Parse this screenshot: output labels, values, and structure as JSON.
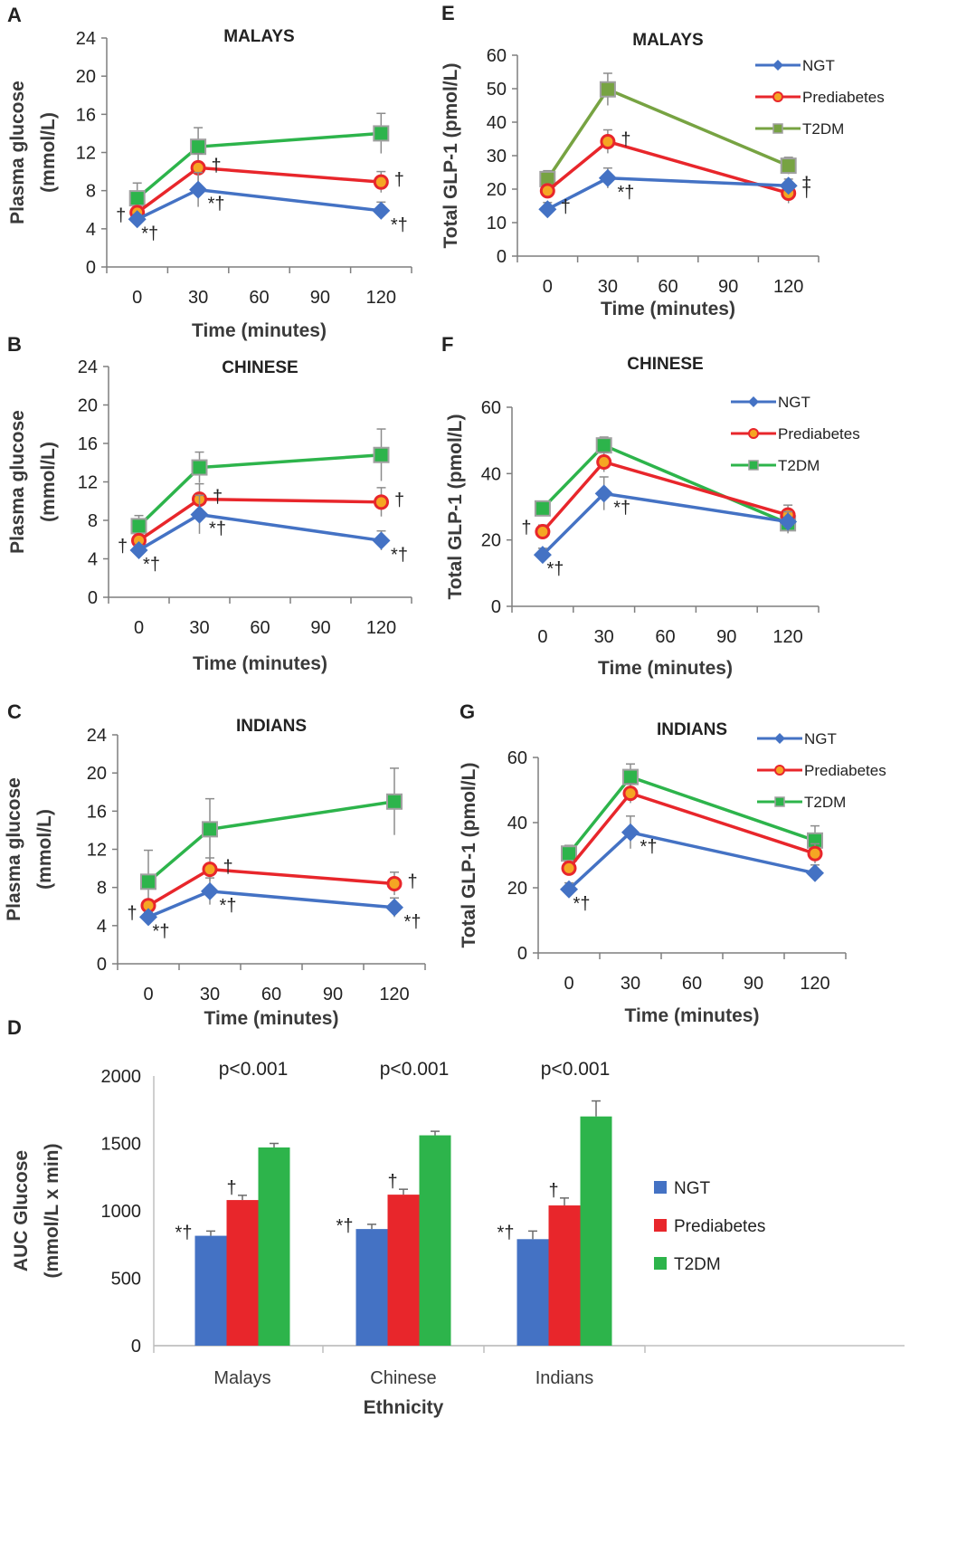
{
  "colors": {
    "NGT": "#4472c4",
    "Prediabetes": "#e8262b",
    "T2DM_malays_glp": "#77a342",
    "T2DM": "#2db44b",
    "axis": "#7f7f7f",
    "text": "#222222",
    "error": "#8c8c8c"
  },
  "chart_data": [
    {
      "id": "A",
      "type": "line",
      "title": "MALAYS",
      "xlabel": "Time (minutes)",
      "ylabel": [
        "Plasma glucose",
        "(mmol/L)"
      ],
      "x_ticks": [
        "0",
        "30",
        "60",
        "90",
        "120"
      ],
      "y_ticks": [
        "0",
        "4",
        "8",
        "12",
        "16",
        "20",
        "24"
      ],
      "xlim": [
        -15,
        135
      ],
      "ylim": [
        0,
        24
      ],
      "series": [
        {
          "name": "NGT",
          "x": [
            0,
            30,
            120
          ],
          "values": [
            5.0,
            8.1,
            5.9
          ],
          "err": [
            0.5,
            1.8,
            0.9
          ]
        },
        {
          "name": "Prediabetes",
          "x": [
            0,
            30,
            120
          ],
          "values": [
            5.7,
            10.4,
            8.9
          ],
          "err": [
            0.5,
            1.5,
            1.1
          ]
        },
        {
          "name": "T2DM",
          "x": [
            0,
            30,
            120
          ],
          "values": [
            7.2,
            12.6,
            14.0
          ],
          "err": [
            1.6,
            2.0,
            2.1
          ]
        }
      ],
      "annotations": [
        {
          "x": 0,
          "y": 5.0,
          "text": "†"
        },
        {
          "x": 0,
          "y": 5.0,
          "text": "*†"
        },
        {
          "x": 30,
          "y": 10.4,
          "text": "†"
        },
        {
          "x": 30,
          "y": 8.1,
          "text": "*†"
        },
        {
          "x": 120,
          "y": 8.9,
          "text": "†"
        },
        {
          "x": 120,
          "y": 5.9,
          "text": "*†"
        }
      ]
    },
    {
      "id": "B",
      "type": "line",
      "title": "CHINESE",
      "xlabel": "Time (minutes)",
      "ylabel": [
        "Plasma glucose",
        "(mmol/L)"
      ],
      "x_ticks": [
        "0",
        "30",
        "60",
        "90",
        "120"
      ],
      "y_ticks": [
        "0",
        "4",
        "8",
        "12",
        "16",
        "20",
        "24"
      ],
      "xlim": [
        -15,
        135
      ],
      "ylim": [
        0,
        24
      ],
      "series": [
        {
          "name": "NGT",
          "x": [
            0,
            30,
            120
          ],
          "values": [
            4.9,
            8.6,
            5.9
          ],
          "err": [
            0.5,
            2.0,
            1.0
          ]
        },
        {
          "name": "Prediabetes",
          "x": [
            0,
            30,
            120
          ],
          "values": [
            5.9,
            10.2,
            9.9
          ],
          "err": [
            0.6,
            1.6,
            1.5
          ]
        },
        {
          "name": "T2DM",
          "x": [
            0,
            30,
            120
          ],
          "values": [
            7.4,
            13.5,
            14.8
          ],
          "err": [
            1.1,
            1.6,
            2.7
          ]
        }
      ],
      "annotations": [
        {
          "x": 0,
          "y": 4.9,
          "text": "†"
        },
        {
          "x": 0,
          "y": 4.9,
          "text": "*†"
        },
        {
          "x": 30,
          "y": 10.2,
          "text": "†"
        },
        {
          "x": 30,
          "y": 8.6,
          "text": "*†"
        },
        {
          "x": 120,
          "y": 9.9,
          "text": "†"
        },
        {
          "x": 120,
          "y": 5.9,
          "text": "*†"
        }
      ]
    },
    {
      "id": "C",
      "type": "line",
      "title": "INDIANS",
      "xlabel": "Time (minutes)",
      "ylabel": [
        "Plasma glucose",
        "(mmol/L)"
      ],
      "x_ticks": [
        "0",
        "30",
        "60",
        "90",
        "120"
      ],
      "y_ticks": [
        "0",
        "4",
        "8",
        "12",
        "16",
        "20",
        "24"
      ],
      "xlim": [
        -15,
        135
      ],
      "ylim": [
        0,
        24
      ],
      "series": [
        {
          "name": "NGT",
          "x": [
            0,
            30,
            120
          ],
          "values": [
            4.9,
            7.6,
            5.9
          ],
          "err": [
            0.5,
            1.4,
            1.0
          ]
        },
        {
          "name": "Prediabetes",
          "x": [
            0,
            30,
            120
          ],
          "values": [
            6.1,
            9.9,
            8.4
          ],
          "err": [
            0.6,
            1.2,
            1.2
          ]
        },
        {
          "name": "T2DM",
          "x": [
            0,
            30,
            120
          ],
          "values": [
            8.6,
            14.1,
            17.0
          ],
          "err": [
            3.3,
            3.2,
            3.5
          ]
        }
      ],
      "annotations": [
        {
          "x": 0,
          "y": 4.9,
          "text": "†"
        },
        {
          "x": 0,
          "y": 4.9,
          "text": "*†"
        },
        {
          "x": 30,
          "y": 9.9,
          "text": "†"
        },
        {
          "x": 30,
          "y": 7.6,
          "text": "*†"
        },
        {
          "x": 120,
          "y": 8.4,
          "text": "†"
        },
        {
          "x": 120,
          "y": 5.9,
          "text": "*†"
        }
      ]
    },
    {
      "id": "E",
      "type": "line",
      "title": "MALAYS",
      "xlabel": "Time (minutes)",
      "ylabel": [
        "Total GLP-1 (pmol/L)"
      ],
      "x_ticks": [
        "0",
        "30",
        "60",
        "90",
        "120"
      ],
      "y_ticks": [
        "0",
        "10",
        "20",
        "30",
        "40",
        "50",
        "60"
      ],
      "xlim": [
        -15,
        135
      ],
      "ylim": [
        0,
        60
      ],
      "legend": [
        "NGT",
        "Prediabetes",
        "T2DM"
      ],
      "series": [
        {
          "name": "NGT",
          "x": [
            0,
            30,
            120
          ],
          "values": [
            14.0,
            23.3,
            21.0
          ],
          "err": [
            2.0,
            3.0,
            2.0
          ]
        },
        {
          "name": "Prediabetes",
          "x": [
            0,
            30,
            120
          ],
          "values": [
            19.5,
            34.2,
            18.8
          ],
          "err": [
            2.0,
            3.5,
            3.0
          ]
        },
        {
          "name": "T2DM",
          "x": [
            0,
            30,
            120
          ],
          "values": [
            23.0,
            49.8,
            27.0
          ],
          "err": [
            2.5,
            4.8,
            2.5
          ]
        }
      ],
      "annotations": [
        {
          "x": 0,
          "y": 14.0,
          "text": "†"
        },
        {
          "x": 30,
          "y": 34.2,
          "text": "†"
        },
        {
          "x": 30,
          "y": 23.3,
          "text": "*†"
        },
        {
          "x": 120,
          "y": 21.0,
          "text": "†"
        },
        {
          "x": 120,
          "y": 18.8,
          "text": "†"
        }
      ]
    },
    {
      "id": "F",
      "type": "line",
      "title": "CHINESE",
      "xlabel": "Time (minutes)",
      "ylabel": [
        "Total GLP-1 (pmol/L)"
      ],
      "x_ticks": [
        "0",
        "30",
        "60",
        "90",
        "120"
      ],
      "y_ticks": [
        "0",
        "20",
        "40",
        "60"
      ],
      "xlim": [
        -15,
        135
      ],
      "ylim": [
        0,
        60
      ],
      "legend": [
        "NGT",
        "Prediabetes",
        "T2DM"
      ],
      "series": [
        {
          "name": "NGT",
          "x": [
            0,
            30,
            120
          ],
          "values": [
            15.5,
            34.0,
            25.5
          ],
          "err": [
            2.0,
            5.0,
            3.0
          ]
        },
        {
          "name": "Prediabetes",
          "x": [
            0,
            30,
            120
          ],
          "values": [
            22.5,
            43.5,
            27.5
          ],
          "err": [
            2.0,
            3.0,
            3.0
          ]
        },
        {
          "name": "T2DM",
          "x": [
            0,
            30,
            120
          ],
          "values": [
            29.5,
            48.5,
            25.0
          ],
          "err": [
            2.0,
            2.5,
            3.0
          ]
        }
      ],
      "annotations": [
        {
          "x": 0,
          "y": 22.5,
          "text": "†"
        },
        {
          "x": 0,
          "y": 15.5,
          "text": "*†"
        },
        {
          "x": 30,
          "y": 34.0,
          "text": "*†"
        }
      ]
    },
    {
      "id": "G",
      "type": "line",
      "title": "INDIANS",
      "xlabel": "Time (minutes)",
      "ylabel": [
        "Total GLP-1 (pmol/L)"
      ],
      "x_ticks": [
        "0",
        "30",
        "60",
        "90",
        "120"
      ],
      "y_ticks": [
        "0",
        "20",
        "40",
        "60"
      ],
      "xlim": [
        -15,
        135
      ],
      "ylim": [
        0,
        60
      ],
      "legend": [
        "NGT",
        "Prediabetes",
        "T2DM"
      ],
      "series": [
        {
          "name": "NGT",
          "x": [
            0,
            30,
            120
          ],
          "values": [
            19.5,
            37.0,
            24.5
          ],
          "err": [
            2.0,
            5.0,
            2.5
          ]
        },
        {
          "name": "Prediabetes",
          "x": [
            0,
            30,
            120
          ],
          "values": [
            26.0,
            49.0,
            30.5
          ],
          "err": [
            2.0,
            3.0,
            3.0
          ]
        },
        {
          "name": "T2DM",
          "x": [
            0,
            30,
            120
          ],
          "values": [
            30.5,
            54.0,
            34.5
          ],
          "err": [
            2.5,
            4.0,
            4.5
          ]
        }
      ],
      "annotations": [
        {
          "x": 0,
          "y": 19.5,
          "text": "*†"
        },
        {
          "x": 30,
          "y": 37.0,
          "text": "*†"
        }
      ]
    },
    {
      "id": "D",
      "type": "bar",
      "title": "",
      "xlabel": "Ethnicity",
      "ylabel": [
        "AUC Glucose",
        "(mmol/L x min)"
      ],
      "categories": [
        "Malays",
        "Chinese",
        "Indians"
      ],
      "y_ticks": [
        "0",
        "500",
        "1000",
        "1500",
        "2000"
      ],
      "ylim": [
        0,
        2000
      ],
      "legend": [
        "NGT",
        "Prediabetes",
        "T2DM"
      ],
      "series": [
        {
          "name": "NGT",
          "values": [
            815,
            865,
            790
          ],
          "err": [
            35,
            35,
            60
          ]
        },
        {
          "name": "Prediabetes",
          "values": [
            1080,
            1120,
            1040
          ],
          "err": [
            35,
            40,
            55
          ]
        },
        {
          "name": "T2DM",
          "values": [
            1470,
            1560,
            1700
          ],
          "err": [
            30,
            30,
            115
          ]
        }
      ],
      "p_values": [
        "p<0.001",
        "p<0.001",
        "p<0.001"
      ],
      "bar_annotations": [
        {
          "category": 0,
          "series": 0,
          "text": "*†"
        },
        {
          "category": 0,
          "series": 1,
          "text": "†"
        },
        {
          "category": 1,
          "series": 0,
          "text": "*†"
        },
        {
          "category": 1,
          "series": 1,
          "text": "†"
        },
        {
          "category": 2,
          "series": 0,
          "text": "*†"
        },
        {
          "category": 2,
          "series": 1,
          "text": "†"
        }
      ]
    }
  ]
}
